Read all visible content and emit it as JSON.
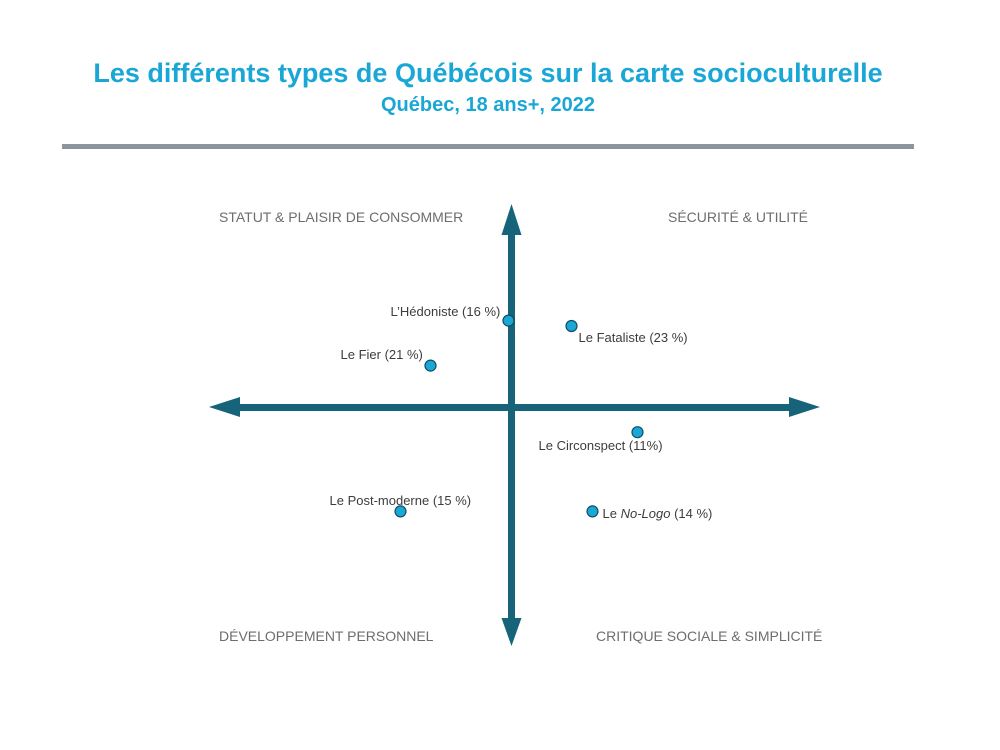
{
  "title": "Les différents types de Québécois sur la carte socioculturelle",
  "subtitle": "Québec, 18 ans+, 2022",
  "quadrants": {
    "top_left": "STATUT & PLAISIR DE CONSOMMER",
    "top_right": "SÉCURITÉ & UTILITÉ",
    "bottom_left": "DÉVELOPPEMENT PERSONNEL",
    "bottom_right": "CRITIQUE SOCIALE & SIMPLICITÉ"
  },
  "colors": {
    "title": "#1aa7d6",
    "axis": "#17637a",
    "point_fill": "#1aa7d6",
    "point_stroke": "#0f4f66"
  },
  "chart_data": {
    "type": "scatter",
    "title": "Les différents types de Québécois sur la carte socioculturelle",
    "subtitle": "Québec, 18 ans+, 2022",
    "xlim": [
      -1,
      1
    ],
    "ylim": [
      -1,
      1
    ],
    "grid": false,
    "points": [
      {
        "label": "L’Hédoniste (16 %)",
        "x": -0.01,
        "y": 0.48
      },
      {
        "label": "Le Fier (21 %)",
        "x": -0.27,
        "y": 0.23
      },
      {
        "label": "Le Fataliste (23 %)",
        "x": 0.2,
        "y": 0.45
      },
      {
        "label": "Le Circonspect (11%)",
        "x": 0.42,
        "y": -0.14
      },
      {
        "label": "Le Post-moderne (15 %)",
        "x": -0.37,
        "y": -0.58
      },
      {
        "label": "Le No-Logo (14 %)",
        "label_prefix": "Le ",
        "label_italic": "No-Logo",
        "label_suffix": " (14 %)",
        "x": 0.27,
        "y": -0.58
      }
    ]
  }
}
